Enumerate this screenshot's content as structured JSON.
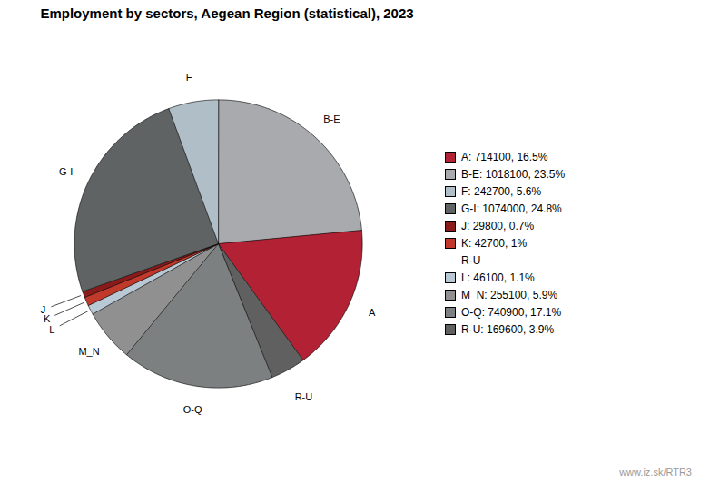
{
  "chart_data": {
    "type": "pie",
    "title": "Employment by sectors, Aegean Region (statistical), 2023",
    "categories": [
      "B-E",
      "A",
      "R-U",
      "O-Q",
      "M_N",
      "L",
      "K",
      "J",
      "G-I",
      "F"
    ],
    "values": [
      1018100,
      714100,
      169600,
      740900,
      255100,
      46100,
      42700,
      29800,
      1074000,
      242700
    ],
    "colors": [
      "#a8aaad",
      "#b22234",
      "#606060",
      "#7d8080",
      "#909090",
      "#b8c8d4",
      "#c0392b",
      "#8b1a1a",
      "#606363",
      "#b0bec8"
    ],
    "legend": "right",
    "legend_items": [
      {
        "label": "A: 714100, 16.5%",
        "color": "#b22234"
      },
      {
        "label": "B-E: 1018100, 23.5%",
        "color": "#a8aaad"
      },
      {
        "label": "F: 242700, 5.6%",
        "color": "#b0bec8"
      },
      {
        "label": "G-I: 1074000, 24.8%",
        "color": "#606363"
      },
      {
        "label": "J: 29800, 0.7%",
        "color": "#8b1a1a"
      },
      {
        "label": "K: 42700, 1%",
        "color": "#c0392b"
      },
      {
        "label": "R-U",
        "color": null
      },
      {
        "label": "L: 46100, 1.1%",
        "color": "#b8c8d4"
      },
      {
        "label": "M_N: 255100, 5.9%",
        "color": "#909090"
      },
      {
        "label": "O-Q: 740900, 17.1%",
        "color": "#7d8080"
      },
      {
        "label": "R-U: 169600, 3.9%",
        "color": "#606060"
      }
    ],
    "annotations": [
      "www.iz.sk/RTR3"
    ]
  }
}
